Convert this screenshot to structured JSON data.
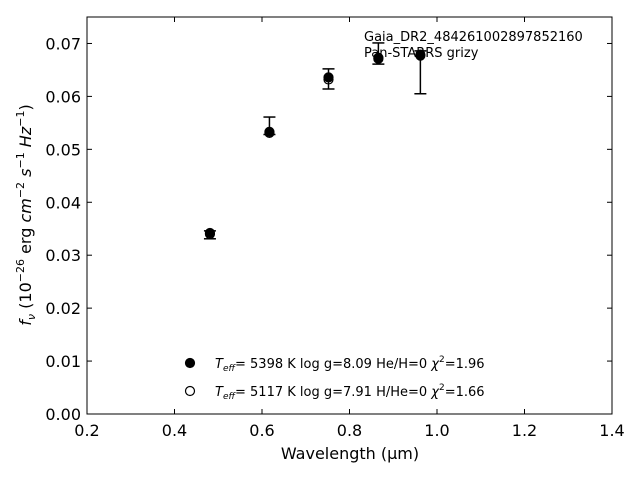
{
  "chart_data": {
    "type": "scatter",
    "xlabel": "Wavelength (μm)",
    "ylabel": "f_ν (10^-26 erg cm^-2 s^-1 Hz^-1)",
    "xlim": [
      0.2,
      1.4
    ],
    "ylim": [
      0.0,
      0.075
    ],
    "xticks": [
      "0.2",
      "0.4",
      "0.6",
      "0.8",
      "1.0",
      "1.2",
      "1.4"
    ],
    "yticks": [
      "0.00",
      "0.01",
      "0.02",
      "0.03",
      "0.04",
      "0.05",
      "0.06",
      "0.07"
    ],
    "annotation": [
      "Gaia_DR2_484261002897852160",
      "Pan-STARRS grizy"
    ],
    "observed": {
      "x": [
        0.481,
        0.617,
        0.752,
        0.866,
        0.962
      ],
      "y": [
        0.0341,
        0.0533,
        0.0634,
        0.0676,
        0.0676
      ],
      "yerr_low": [
        0.001,
        0.0005,
        0.002,
        0.0015,
        0.0071
      ],
      "yerr_high": [
        0.0005,
        0.0028,
        0.0018,
        0.0025,
        0.001
      ]
    },
    "series": [
      {
        "marker": "filled",
        "label_parts": [
          "T",
          "eff",
          "= 5398 K log g=8.09 He/H=0 ",
          "χ",
          "2",
          "=1.96"
        ],
        "x": [
          0.481,
          0.617,
          0.752,
          0.866,
          0.962
        ],
        "y": [
          0.0342,
          0.0533,
          0.0636,
          0.0671,
          0.0679
        ]
      },
      {
        "marker": "open",
        "label_parts": [
          "T",
          "eff",
          "= 5117 K log g=7.91 H/He=0 ",
          "χ",
          "2",
          "=1.66"
        ],
        "x": [
          0.481,
          0.617,
          0.752,
          0.866,
          0.962
        ],
        "y": [
          0.034,
          0.0531,
          0.0632,
          0.0673,
          0.0677
        ]
      }
    ],
    "legend_position": "lower-center",
    "grid": false
  }
}
